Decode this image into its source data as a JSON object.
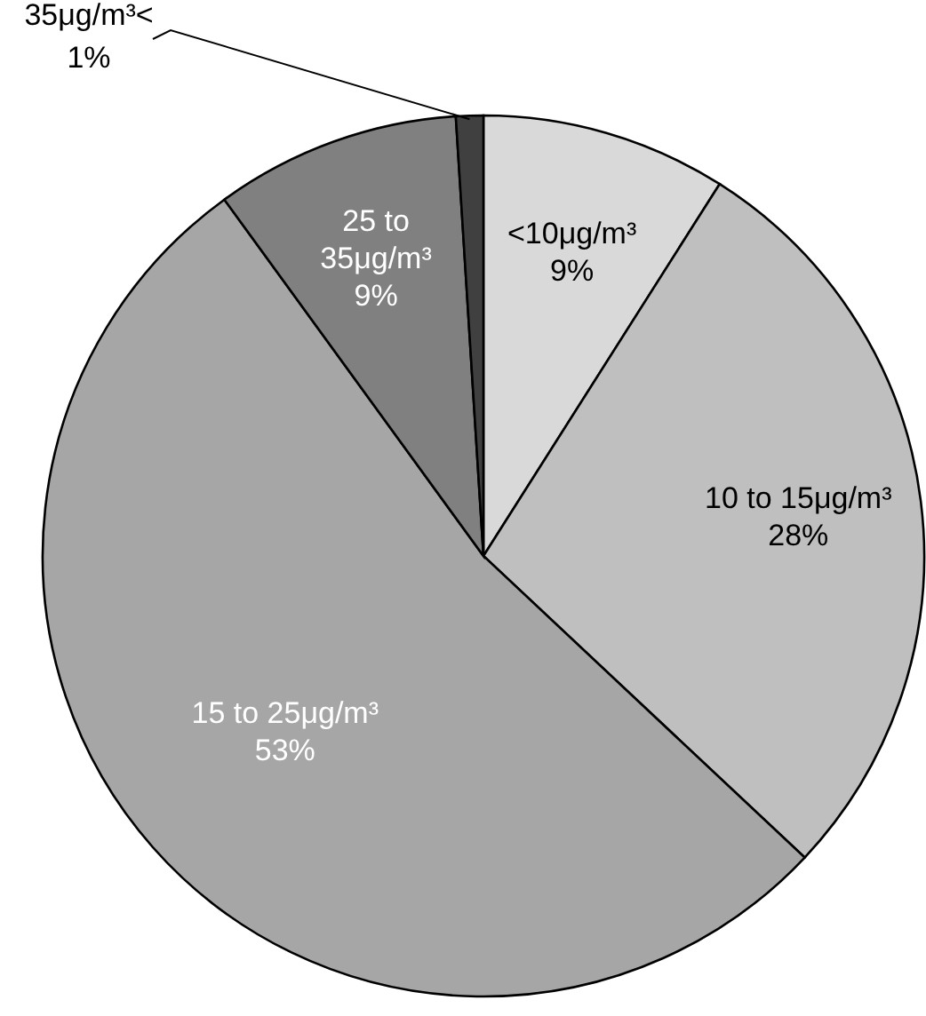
{
  "chart_data": {
    "type": "pie",
    "categories": [
      "<10μg/m³",
      "10 to 15μg/m³",
      "15 to 25μg/m³",
      "25 to 35μg/m³",
      "35μg/m³<"
    ],
    "values": [
      9,
      28,
      53,
      9,
      1
    ],
    "colors": [
      "#d9d9d9",
      "#bfbfbf",
      "#a6a6a6",
      "#808080",
      "#404040"
    ],
    "value_labels": [
      "9%",
      "28%",
      "53%",
      "9%",
      "1%"
    ]
  }
}
